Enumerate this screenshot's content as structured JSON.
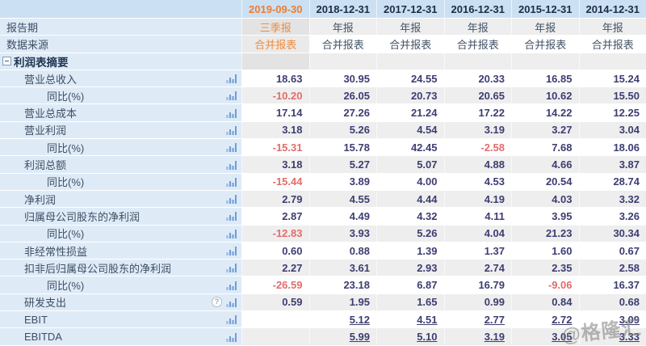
{
  "header": {
    "columns": [
      "2019-09-30",
      "2018-12-31",
      "2017-12-31",
      "2016-12-31",
      "2015-12-31",
      "2014-12-31"
    ],
    "current_column_index": 0
  },
  "meta_rows": [
    {
      "label": "报告期",
      "values": [
        "三季报",
        "年报",
        "年报",
        "年报",
        "年报",
        "年报"
      ]
    },
    {
      "label": "数据来源",
      "values": [
        "合并报表",
        "合并报表",
        "合并报表",
        "合并报表",
        "合并报表",
        "合并报表"
      ]
    }
  ],
  "section": {
    "title": "利润表摘要",
    "collapse_icon": "minus-box-icon"
  },
  "rows": [
    {
      "label": "营业总收入",
      "indent": 1,
      "values": [
        "18.63",
        "30.95",
        "24.55",
        "20.33",
        "16.85",
        "15.24"
      ]
    },
    {
      "label": "同比(%)",
      "indent": 2,
      "values": [
        "-10.20",
        "26.05",
        "20.73",
        "20.65",
        "10.62",
        "15.50"
      ]
    },
    {
      "label": "营业总成本",
      "indent": 1,
      "values": [
        "17.14",
        "27.26",
        "21.24",
        "17.22",
        "14.22",
        "12.25"
      ]
    },
    {
      "label": "营业利润",
      "indent": 1,
      "values": [
        "3.18",
        "5.26",
        "4.54",
        "3.19",
        "3.27",
        "3.04"
      ]
    },
    {
      "label": "同比(%)",
      "indent": 2,
      "values": [
        "-15.31",
        "15.78",
        "42.45",
        "-2.58",
        "7.68",
        "18.06"
      ]
    },
    {
      "label": "利润总额",
      "indent": 1,
      "values": [
        "3.18",
        "5.27",
        "5.07",
        "4.88",
        "4.66",
        "3.87"
      ]
    },
    {
      "label": "同比(%)",
      "indent": 2,
      "values": [
        "-15.44",
        "3.89",
        "4.00",
        "4.53",
        "20.54",
        "28.74"
      ]
    },
    {
      "label": "净利润",
      "indent": 1,
      "values": [
        "2.79",
        "4.55",
        "4.44",
        "4.19",
        "4.03",
        "3.32"
      ]
    },
    {
      "label": "归属母公司股东的净利润",
      "indent": 1,
      "values": [
        "2.87",
        "4.49",
        "4.32",
        "4.11",
        "3.95",
        "3.26"
      ]
    },
    {
      "label": "同比(%)",
      "indent": 2,
      "values": [
        "-12.83",
        "3.93",
        "5.26",
        "4.04",
        "21.23",
        "30.34"
      ]
    },
    {
      "label": "非经常性损益",
      "indent": 1,
      "values": [
        "0.60",
        "0.88",
        "1.39",
        "1.37",
        "1.60",
        "0.67"
      ]
    },
    {
      "label": "扣非后归属母公司股东的净利润",
      "indent": 1,
      "values": [
        "2.27",
        "3.61",
        "2.93",
        "2.74",
        "2.35",
        "2.58"
      ]
    },
    {
      "label": "同比(%)",
      "indent": 2,
      "values": [
        "-26.59",
        "23.18",
        "6.87",
        "16.79",
        "-9.06",
        "16.37"
      ]
    },
    {
      "label": "研发支出",
      "indent": 1,
      "help": true,
      "values": [
        "0.59",
        "1.95",
        "1.65",
        "0.99",
        "0.84",
        "0.68"
      ]
    },
    {
      "label": "EBIT",
      "indent": 1,
      "link": true,
      "values": [
        "",
        "5.12",
        "4.51",
        "2.77",
        "2.72",
        "3.09"
      ]
    },
    {
      "label": "EBITDA",
      "indent": 1,
      "link": true,
      "values": [
        "",
        "5.99",
        "5.10",
        "3.19",
        "3.05",
        "3.33"
      ]
    }
  ],
  "watermark": "@格隆汇",
  "colors": {
    "header_bg": "#cbe0f2",
    "label_col_bg": "#deebf7",
    "stripe_gray": "#eeeeee",
    "accent_orange": "#ed7d31",
    "value_navy": "#3d3d73",
    "negative_red": "#e36c6c",
    "date_navy": "#1d2c47",
    "chart_icon_blue": "#6f9cd6"
  }
}
